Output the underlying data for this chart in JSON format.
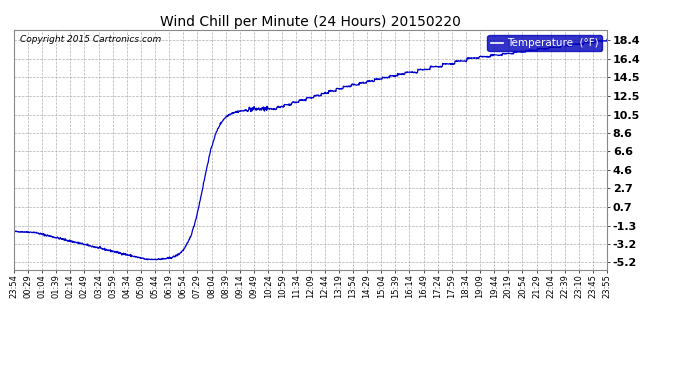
{
  "title": "Wind Chill per Minute (24 Hours) 20150220",
  "copyright": "Copyright 2015 Cartronics.com",
  "legend_label": "Temperature  (°F)",
  "line_color": "#0000cc",
  "background_color": "#ffffff",
  "grid_color": "#b0b0b0",
  "yticks": [
    -5.2,
    -3.2,
    -1.3,
    0.7,
    2.7,
    4.6,
    6.6,
    8.6,
    10.5,
    12.5,
    14.5,
    16.4,
    18.4
  ],
  "ymin": -6.0,
  "ymax": 19.5,
  "xtick_labels": [
    "23:54",
    "00:29",
    "01:04",
    "01:39",
    "02:14",
    "02:49",
    "03:24",
    "03:59",
    "04:34",
    "05:09",
    "05:44",
    "06:19",
    "06:54",
    "07:29",
    "08:04",
    "08:39",
    "09:14",
    "09:49",
    "10:24",
    "10:59",
    "11:34",
    "12:09",
    "12:44",
    "13:19",
    "13:54",
    "14:29",
    "15:04",
    "15:39",
    "16:14",
    "16:49",
    "17:24",
    "17:59",
    "18:34",
    "19:09",
    "19:44",
    "20:19",
    "20:54",
    "21:29",
    "22:04",
    "22:39",
    "23:10",
    "23:45",
    "23:55"
  ],
  "num_points": 1440
}
